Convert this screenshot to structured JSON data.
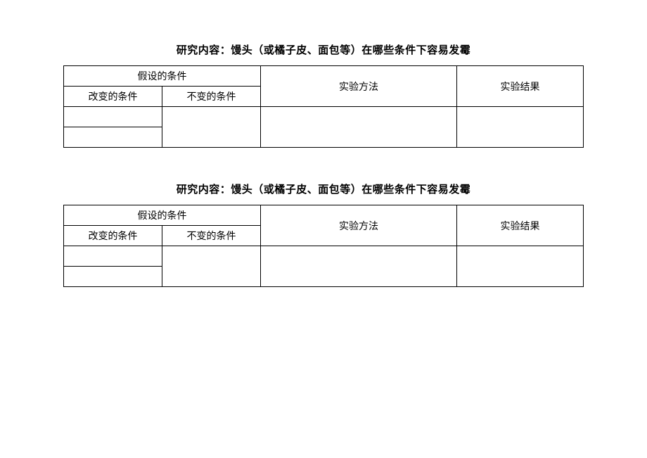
{
  "title_fontsize": 15,
  "cell_fontsize": 14,
  "border_color": "#000000",
  "background_color": "#ffffff",
  "tables": [
    {
      "title": "研究内容：馒头（或橘子皮、面包等）在哪些条件下容易发霉",
      "header_group": "假设的条件",
      "subheader_left": "改变的条件",
      "subheader_right": "不变的条件",
      "col3": "实验方法",
      "col4": "实验结果",
      "rows": [
        {
          "changed": "",
          "unchanged": "",
          "method": "",
          "result": ""
        },
        {
          "changed": "",
          "unchanged": "",
          "method": "",
          "result": ""
        }
      ]
    },
    {
      "title": "研究内容：馒头（或橘子皮、面包等）在哪些条件下容易发霉",
      "header_group": "假设的条件",
      "subheader_left": "改变的条件",
      "subheader_right": "不变的条件",
      "col3": "实验方法",
      "col4": "实验结果",
      "rows": [
        {
          "changed": "",
          "unchanged": "",
          "method": "",
          "result": ""
        },
        {
          "changed": "",
          "unchanged": "",
          "method": "",
          "result": ""
        }
      ]
    }
  ]
}
